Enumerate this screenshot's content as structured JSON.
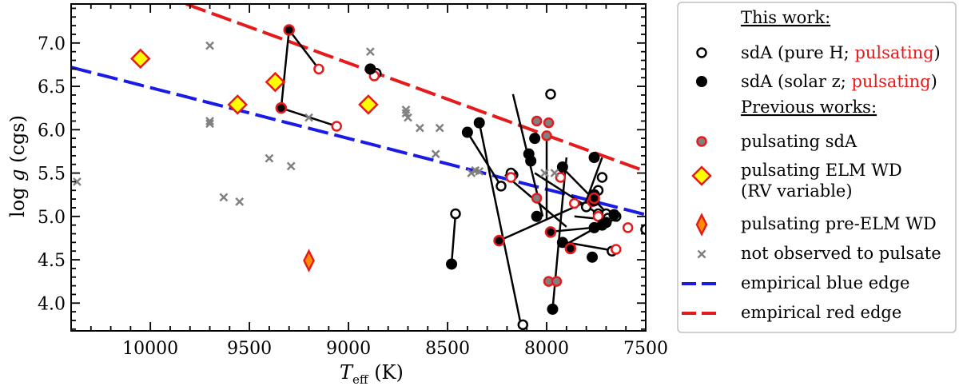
{
  "chart_data": {
    "type": "scatter",
    "xlabel_main": "T",
    "xlabel_sub": "eff",
    "xlabel_unit": " (K)",
    "ylabel_prefix": "log ",
    "ylabel_var": "g",
    "ylabel_unit": " (cgs)",
    "xlim": [
      10400,
      7500
    ],
    "ylim": [
      7.45,
      3.68
    ],
    "xticks": [
      10000,
      9500,
      9000,
      8500,
      8000,
      7500
    ],
    "xtick_labels": [
      "10000",
      "9500",
      "9000",
      "8500",
      "8000",
      "7500"
    ],
    "yticks": [
      4.0,
      4.5,
      5.0,
      5.5,
      6.0,
      6.5,
      7.0
    ],
    "ytick_labels": [
      "4.0",
      "4.5",
      "5.0",
      "5.5",
      "6.0",
      "6.5",
      "7.0"
    ],
    "colors": {
      "red": "#e41a1c",
      "blue": "#1a1ae6",
      "gray": "#808080",
      "yellow": "#ffff00",
      "orange": "#ff8c00"
    },
    "blue_edge": {
      "x": [
        10400,
        7500
      ],
      "y": [
        6.72,
        5.02
      ]
    },
    "red_edge": {
      "x": [
        9820,
        7500
      ],
      "y": [
        7.45,
        5.52
      ]
    },
    "connections": [
      [
        [
          8130,
          3.75
        ],
        [
          8340,
          6.08
        ]
      ],
      [
        [
          8480,
          4.45
        ],
        [
          8460,
          5.03
        ]
      ],
      [
        [
          7970,
          3.93
        ],
        [
          7900,
          5.68
        ]
      ],
      [
        [
          8240,
          4.72
        ],
        [
          7760,
          5.21
        ]
      ],
      [
        [
          7900,
          4.68
        ],
        [
          7650,
          5.0
        ]
      ],
      [
        [
          8000,
          4.82
        ],
        [
          7720,
          4.88
        ]
      ],
      [
        [
          7900,
          4.7
        ],
        [
          7650,
          4.6
        ]
      ],
      [
        [
          7900,
          4.88
        ],
        [
          8210,
          5.48
        ]
      ],
      [
        [
          8230,
          5.35
        ],
        [
          8400,
          5.97
        ]
      ],
      [
        [
          8020,
          5.0
        ],
        [
          8170,
          6.41
        ]
      ],
      [
        [
          7860,
          5.0
        ],
        [
          7640,
          4.95
        ]
      ],
      [
        [
          7810,
          5.12
        ],
        [
          7720,
          5.68
        ]
      ],
      [
        [
          7920,
          5.56
        ],
        [
          7700,
          5.05
        ]
      ],
      [
        [
          8000,
          4.96
        ],
        [
          8000,
          5.62
        ]
      ],
      [
        [
          7740,
          5.03
        ],
        [
          8060,
          5.5
        ]
      ],
      [
        [
          8000,
          5.62
        ],
        [
          8000,
          5.9
        ]
      ],
      [
        [
          9340,
          6.25
        ],
        [
          9060,
          6.04
        ]
      ],
      [
        [
          9340,
          6.25
        ],
        [
          9300,
          7.15
        ]
      ],
      [
        [
          9300,
          7.15
        ],
        [
          9150,
          6.7
        ]
      ],
      [
        [
          8890,
          6.7
        ],
        [
          8860,
          6.65
        ]
      ]
    ],
    "series": [
      {
        "name": "sdA (pure H)",
        "marker": "open-circle",
        "points": [
          [
            8120,
            3.75
          ],
          [
            7670,
            4.6
          ],
          [
            8460,
            5.03
          ],
          [
            7500,
            4.85
          ],
          [
            7700,
            5.03
          ],
          [
            7690,
            4.98
          ],
          [
            7800,
            5.11
          ],
          [
            7740,
            5.03
          ],
          [
            7650,
            5.0
          ],
          [
            7740,
            5.3
          ],
          [
            8230,
            5.35
          ],
          [
            8170,
            5.48
          ],
          [
            8180,
            5.5
          ],
          [
            7720,
            5.45
          ],
          [
            7980,
            6.41
          ],
          [
            8860,
            6.65
          ]
        ]
      },
      {
        "name": "sdA (pure H; pulsating)",
        "marker": "open-circle-red",
        "points": [
          [
            9060,
            6.04
          ],
          [
            9150,
            6.7
          ],
          [
            8870,
            6.62
          ],
          [
            8180,
            5.45
          ],
          [
            7860,
            5.15
          ],
          [
            7930,
            5.45
          ],
          [
            7650,
            4.62
          ],
          [
            7590,
            4.87
          ],
          [
            7770,
            5.17
          ],
          [
            7740,
            5.0
          ]
        ]
      },
      {
        "name": "sdA (solar z)",
        "marker": "filled-circle",
        "points": [
          [
            8480,
            4.45
          ],
          [
            7970,
            3.93
          ],
          [
            7770,
            4.53
          ],
          [
            7920,
            4.7
          ],
          [
            7720,
            4.9
          ],
          [
            7760,
            4.87
          ],
          [
            7700,
            4.93
          ],
          [
            7660,
            5.02
          ],
          [
            8050,
            5.0
          ],
          [
            7760,
            5.18
          ],
          [
            7760,
            5.25
          ],
          [
            7920,
            5.57
          ],
          [
            8080,
            5.64
          ],
          [
            8090,
            5.72
          ],
          [
            8060,
            5.9
          ],
          [
            8400,
            5.97
          ],
          [
            8340,
            6.08
          ],
          [
            7760,
            5.68
          ],
          [
            8890,
            6.7
          ]
        ]
      },
      {
        "name": "sdA (solar z; pulsating)",
        "marker": "filled-circle-red",
        "points": [
          [
            8240,
            4.72
          ],
          [
            7980,
            4.82
          ],
          [
            7880,
            4.63
          ],
          [
            7760,
            5.21
          ],
          [
            9340,
            6.25
          ],
          [
            9300,
            7.15
          ]
        ]
      },
      {
        "name": "pulsating sdA",
        "marker": "gray-circle-red",
        "points": [
          [
            7990,
            4.25
          ],
          [
            7950,
            4.25
          ],
          [
            8050,
            5.21
          ],
          [
            7990,
            6.08
          ],
          [
            8050,
            6.1
          ],
          [
            8000,
            5.93
          ]
        ]
      },
      {
        "name": "pulsating ELM WD (RV variable)",
        "marker": "diamond",
        "points": [
          [
            9560,
            6.29
          ],
          [
            9370,
            6.55
          ],
          [
            8900,
            6.29
          ],
          [
            10050,
            6.82
          ]
        ]
      },
      {
        "name": "pulsating pre-ELM WD",
        "marker": "thin-diamond",
        "points": [
          [
            9200,
            4.49
          ]
        ]
      },
      {
        "name": "not observed to pulsate",
        "marker": "x",
        "points": [
          [
            10370,
            5.4
          ],
          [
            9630,
            5.22
          ],
          [
            9550,
            5.17
          ],
          [
            9400,
            5.67
          ],
          [
            9290,
            5.58
          ],
          [
            9700,
            6.07
          ],
          [
            9700,
            6.1
          ],
          [
            9200,
            6.14
          ],
          [
            9700,
            6.97
          ],
          [
            8890,
            6.9
          ],
          [
            8710,
            6.19
          ],
          [
            8710,
            6.23
          ],
          [
            8700,
            6.14
          ],
          [
            8640,
            6.02
          ],
          [
            8560,
            5.72
          ],
          [
            8540,
            6.02
          ],
          [
            8380,
            5.5
          ],
          [
            8360,
            5.53
          ],
          [
            8340,
            5.52
          ],
          [
            8010,
            5.5
          ],
          [
            7960,
            5.5
          ]
        ]
      }
    ],
    "legend": {
      "position": "outside-right",
      "heading_this": "This work:",
      "heading_previous": "Previous works:",
      "entries": [
        {
          "marker": "open-circle",
          "text_a": "sdA (pure H; ",
          "text_b": "pulsating",
          "text_c": ")"
        },
        {
          "marker": "filled-circle",
          "text_a": "sdA (solar z; ",
          "text_b": "pulsating",
          "text_c": ")"
        },
        {
          "marker": "gray-circle-red",
          "text_a": "pulsating sdA"
        },
        {
          "marker": "diamond",
          "text_a": "pulsating ELM WD",
          "text_line2": "(RV variable)"
        },
        {
          "marker": "thin-diamond",
          "text_a": "pulsating pre-ELM WD"
        },
        {
          "marker": "x",
          "text_a": "not observed to pulsate"
        },
        {
          "marker": "blue-dash",
          "text_a": "empirical blue edge"
        },
        {
          "marker": "red-dash",
          "text_a": "empirical red edge"
        }
      ]
    }
  }
}
